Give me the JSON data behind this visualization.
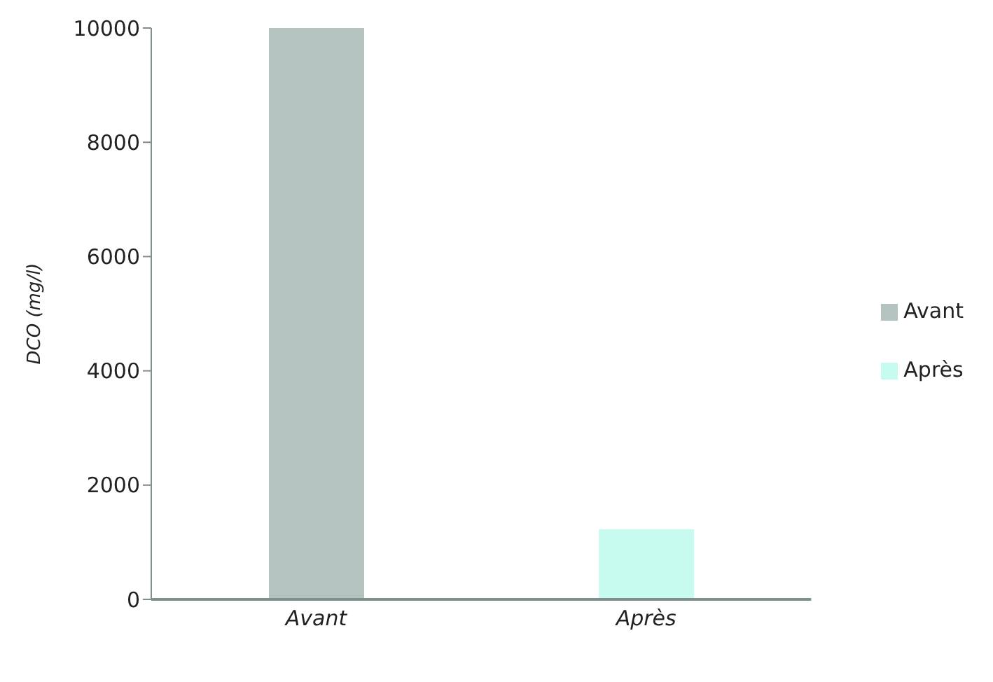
{
  "chart_data": {
    "type": "bar",
    "ylabel": "DCO (mg/l)",
    "categories": [
      "Avant",
      "Après"
    ],
    "series": [
      {
        "name": "Avant",
        "color": "#b5c3c0",
        "values": [
          10000,
          null
        ]
      },
      {
        "name": "Après",
        "color": "#c8fbef",
        "values": [
          null,
          1230
        ]
      }
    ],
    "ylim": [
      0,
      10000
    ],
    "yticks": [
      0,
      2000,
      4000,
      6000,
      8000,
      10000
    ],
    "grid": false,
    "legend": "right"
  }
}
